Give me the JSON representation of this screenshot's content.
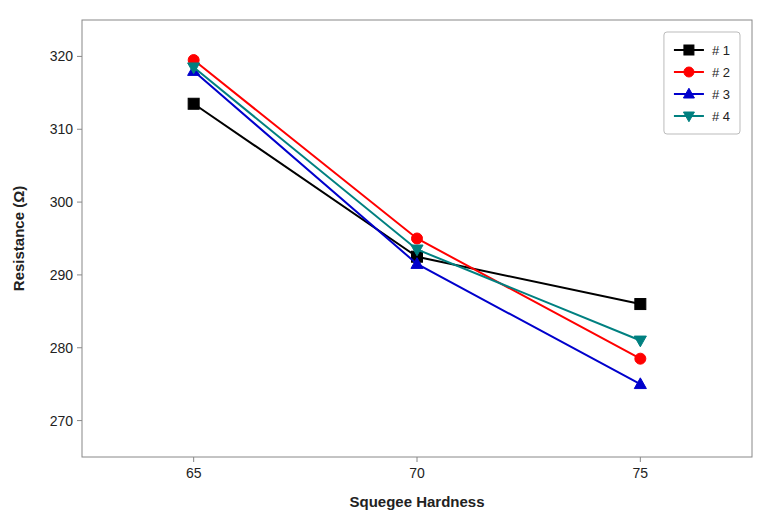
{
  "chart_data": {
    "type": "line",
    "x": [
      65,
      70,
      75
    ],
    "series": [
      {
        "name": "# 1",
        "color": "#000000",
        "marker": "square",
        "line_style": "solid",
        "values": [
          313.5,
          292.5,
          286.0
        ]
      },
      {
        "name": "# 2",
        "color": "#ff0000",
        "marker": "circle",
        "line_style": "solid",
        "values": [
          319.5,
          295.0,
          278.5
        ]
      },
      {
        "name": "# 3",
        "color": "#0000cc",
        "marker": "triangle-up",
        "line_style": "solid",
        "values": [
          318.0,
          291.5,
          275.0
        ]
      },
      {
        "name": "# 4",
        "color": "#008080",
        "marker": "triangle-down",
        "line_style": "solid",
        "values": [
          318.5,
          293.5,
          281.0
        ]
      }
    ],
    "x_label": "Squegee Hardness",
    "y_label": "Resistance (Ω)",
    "xlim": [
      62.5,
      77.5
    ],
    "ylim": [
      265,
      325
    ],
    "xticks": [
      65,
      70,
      75
    ],
    "yticks": [
      270,
      280,
      290,
      300,
      310,
      320
    ],
    "legend": "upper right",
    "grid": false
  }
}
